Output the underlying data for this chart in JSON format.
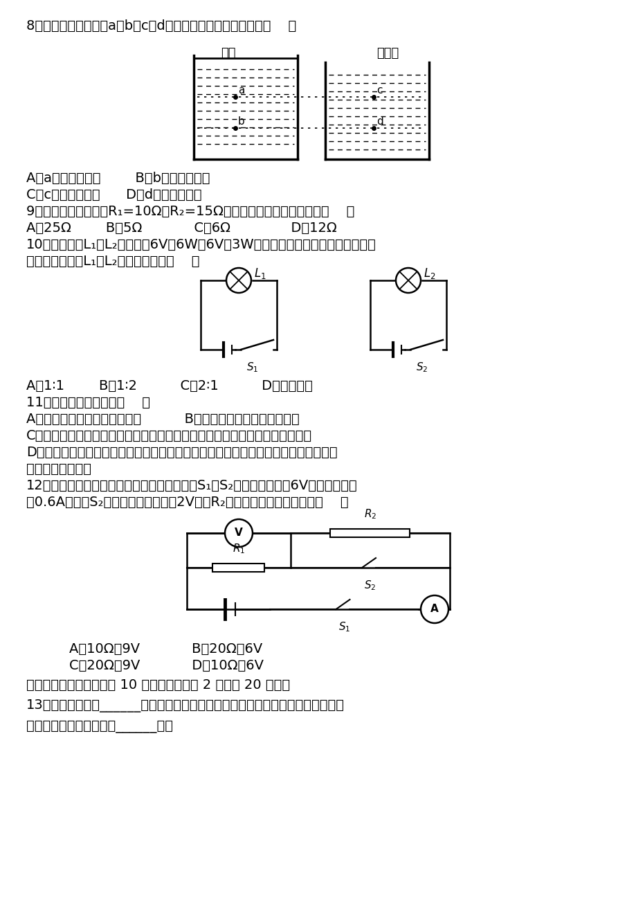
{
  "bg_color": "#ffffff",
  "text_color": "#000000",
  "q8_text": "8．如图，关于液体中a、b、c、d四点压强的说法中正确的是（    ）",
  "q8_A": "A．a点的压强最大        B．b点的压强最大",
  "q8_C": "C．c点的压强最大      D．d点的压强最大",
  "q9_text": "9．有两个电阵，其中R₁=10Ω，R₂=15Ω，将它们并联后的总电阵是（    ）",
  "q9_opts": "A．25Ω        B．5Ω            C．6Ω              D．12Ω",
  "q10_text1": "10．如图，灯L₁、L₂分别标有6V，6W和6V，3W的字样，当开关都闭合时两灯都正",
  "q10_text2": "常发光，则通过L₁和L₂的电流之比是（    ）",
  "q10_opts": "A．1∶1        B．1∶2          C．2∶1          D．无法确定",
  "q11_text": "11．下列说法正确的是（    ）",
  "q11_A": "A．平面镜成倒立、等大的虚像          B．照相机成倒立、缩小的实像",
  "q11_C": "C．弹簧测力计拉动放置在粗糙水平桌面上的木块做匀速直线运动时，示数为零",
  "q11_D": "D．电炉工作时，电阵丝发热而与其相连的导线并不怎么热，原因是通过电阵丝的电流",
  "q11_D2": "大，产生的热量多",
  "q12_text1": "12．如图所示，电源电压保持不变，闭合开关S₁、S₂，电压表示数为6V，电流表示数",
  "q12_text2": "为0.6A，断开S₂后，电压表示数变为2V，则R₂的电阵和电源电压分别是（    ）",
  "q12_A": "A．10Ω、9V            B．20Ω、6V",
  "q12_C": "C．20Ω、9V            D．10Ω、6V",
  "q13_head": "二、填空与作图题（本题 10 个小题，每小题 2 分，共 20 分。）",
  "q13_text1": "13．安培定则：用______手握聉线管，让四指指向聉线管中电流的方向，则大拇指",
  "q13_text2": "所指的那端就是聉线管的______极。"
}
